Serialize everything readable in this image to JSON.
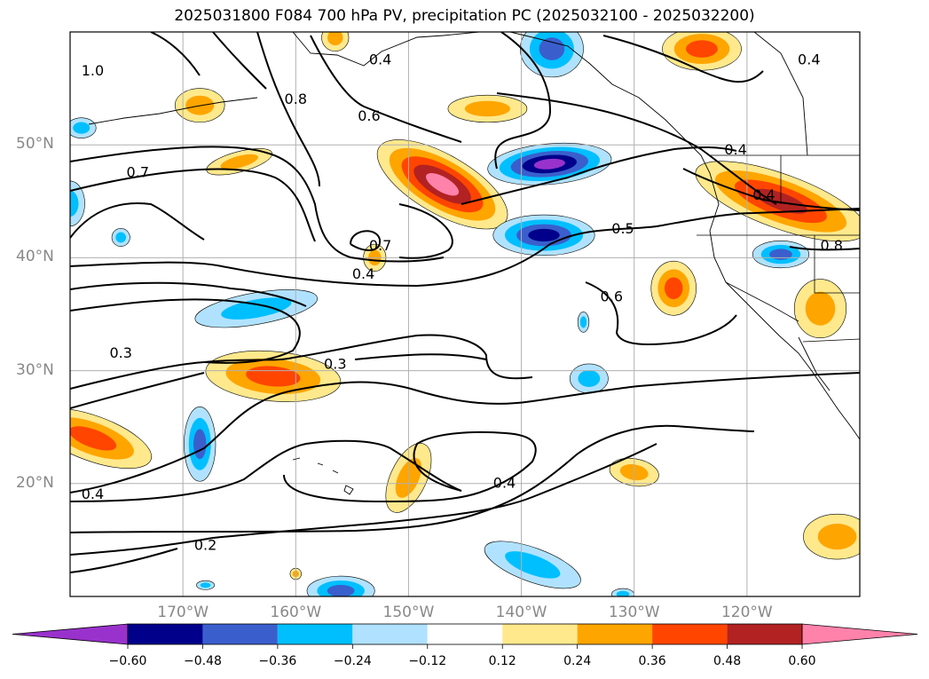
{
  "title": "2025031800 F084 700 hPa PV, precipitation PC (2025032100 - 2025032200)",
  "map": {
    "lon_range": [
      -180,
      -110
    ],
    "lat_range": [
      10,
      60
    ],
    "gridlines": true,
    "lat_ticks": [
      {
        "value": 50,
        "label": "50°N"
      },
      {
        "value": 40,
        "label": "40°N"
      },
      {
        "value": 30,
        "label": "30°N"
      },
      {
        "value": 20,
        "label": "20°N"
      }
    ],
    "lon_ticks": [
      {
        "value": -170,
        "label": "170°W"
      },
      {
        "value": -160,
        "label": "160°W"
      },
      {
        "value": -150,
        "label": "150°W"
      },
      {
        "value": -140,
        "label": "140°W"
      },
      {
        "value": -130,
        "label": "130°W"
      },
      {
        "value": -120,
        "label": "120°W"
      }
    ]
  },
  "contour_labels": [
    {
      "text": "1.0",
      "lon": -178,
      "lat": 56.5
    },
    {
      "text": "0.8",
      "lon": -160,
      "lat": 54
    },
    {
      "text": "0.4",
      "lon": -152.5,
      "lat": 57.5
    },
    {
      "text": "0.6",
      "lon": -153.5,
      "lat": 52.5
    },
    {
      "text": "0.7",
      "lon": -174,
      "lat": 47.5
    },
    {
      "text": "0.7",
      "lon": -152.5,
      "lat": 41
    },
    {
      "text": "0.4",
      "lon": -154,
      "lat": 38.5
    },
    {
      "text": "0.5",
      "lon": -131,
      "lat": 42.5
    },
    {
      "text": "0.6",
      "lon": -132,
      "lat": 36.5
    },
    {
      "text": "0.4",
      "lon": -121,
      "lat": 49.5
    },
    {
      "text": "0.4",
      "lon": -118.5,
      "lat": 45.5
    },
    {
      "text": "0.4",
      "lon": -114.5,
      "lat": 57.5
    },
    {
      "text": "0.8",
      "lon": -112.5,
      "lat": 41
    },
    {
      "text": "0.3",
      "lon": -175.5,
      "lat": 31.5
    },
    {
      "text": "0.3",
      "lon": -156.5,
      "lat": 30.5
    },
    {
      "text": "0.4",
      "lon": -178,
      "lat": 19
    },
    {
      "text": "0.4",
      "lon": -141.5,
      "lat": 20
    },
    {
      "text": "0.2",
      "lon": -168,
      "lat": 14.5
    }
  ],
  "colorbar": {
    "levels": [
      -0.6,
      -0.48,
      -0.36,
      -0.24,
      -0.12,
      0.12,
      0.24,
      0.36,
      0.48,
      0.6
    ],
    "tick_labels": [
      "−0.60",
      "−0.48",
      "−0.36",
      "−0.24",
      "−0.12",
      "0.12",
      "0.24",
      "0.36",
      "0.48",
      "0.60"
    ],
    "colors": [
      "#9932cc",
      "#00008b",
      "#3a5fcd",
      "#00bfff",
      "#b0e2ff",
      "#ffffff",
      "#ffe98c",
      "#ffa500",
      "#ff4500",
      "#b22222",
      "#ff82ab"
    ],
    "extend": "both"
  },
  "shading": [
    {
      "lon": -147,
      "lat": 46.5,
      "rx": 6.5,
      "ry": 2.6,
      "rot": 30,
      "value": 0.62
    },
    {
      "lon": -137.5,
      "lat": 48.3,
      "rx": 5.5,
      "ry": 1.8,
      "rot": -5,
      "value": -0.62
    },
    {
      "lon": -138,
      "lat": 42,
      "rx": 4.5,
      "ry": 1.8,
      "rot": 0,
      "value": -0.5
    },
    {
      "lon": -117,
      "lat": 40.3,
      "rx": 2.5,
      "ry": 1.2,
      "rot": 0,
      "value": -0.4
    },
    {
      "lon": -117,
      "lat": 45,
      "rx": 8,
      "ry": 2.4,
      "rot": 20,
      "value": 0.5
    },
    {
      "lon": -126.5,
      "lat": 37.3,
      "rx": 2,
      "ry": 2.4,
      "rot": 0,
      "value": 0.38
    },
    {
      "lon": -113.5,
      "lat": 35.5,
      "rx": 2.3,
      "ry": 2.6,
      "rot": 0,
      "value": 0.3
    },
    {
      "lon": -124,
      "lat": 58.5,
      "rx": 3.5,
      "ry": 1.9,
      "rot": 0,
      "value": 0.4
    },
    {
      "lon": -137.3,
      "lat": 58.5,
      "rx": 2.8,
      "ry": 2.5,
      "rot": 0,
      "value": -0.45
    },
    {
      "lon": -143,
      "lat": 53.2,
      "rx": 3.5,
      "ry": 1.2,
      "rot": 0,
      "value": 0.3
    },
    {
      "lon": -156.5,
      "lat": 59.5,
      "rx": 1.2,
      "ry": 1.2,
      "rot": 0,
      "value": 0.32
    },
    {
      "lon": -178,
      "lat": 24,
      "rx": 5.5,
      "ry": 2,
      "rot": 20,
      "value": 0.38
    },
    {
      "lon": -162,
      "lat": 29.5,
      "rx": 6,
      "ry": 2.2,
      "rot": 5,
      "value": 0.38
    },
    {
      "lon": -150,
      "lat": 20.5,
      "rx": 1.6,
      "ry": 3.3,
      "rot": 25,
      "value": 0.34
    },
    {
      "lon": -130,
      "lat": 21,
      "rx": 2.2,
      "ry": 1.2,
      "rot": 10,
      "value": 0.33
    },
    {
      "lon": -112,
      "lat": 15.3,
      "rx": 3,
      "ry": 2,
      "rot": 0,
      "value": 0.3
    },
    {
      "lon": -168.5,
      "lat": 53.5,
      "rx": 2.2,
      "ry": 1.5,
      "rot": 0,
      "value": 0.26
    },
    {
      "lon": -165,
      "lat": 48.5,
      "rx": 3,
      "ry": 0.9,
      "rot": -15,
      "value": 0.26
    },
    {
      "lon": -153,
      "lat": 40,
      "rx": 1,
      "ry": 1.2,
      "rot": 0,
      "value": 0.26
    },
    {
      "lon": -168.5,
      "lat": 23.5,
      "rx": 1.4,
      "ry": 3.3,
      "rot": 0,
      "value": -0.42
    },
    {
      "lon": -163.5,
      "lat": 35.5,
      "rx": 5.5,
      "ry": 1.4,
      "rot": -10,
      "value": -0.3
    },
    {
      "lon": -139,
      "lat": 12.8,
      "rx": 4.5,
      "ry": 1.5,
      "rot": 20,
      "value": -0.3
    },
    {
      "lon": -134,
      "lat": 29.3,
      "rx": 1.7,
      "ry": 1.3,
      "rot": 0,
      "value": -0.3
    },
    {
      "lon": -156,
      "lat": 10.5,
      "rx": 3,
      "ry": 1.3,
      "rot": 0,
      "value": -0.4
    },
    {
      "lon": -180,
      "lat": 44.8,
      "rx": 1.3,
      "ry": 2,
      "rot": 0,
      "value": -0.3
    },
    {
      "lon": -179,
      "lat": 51.5,
      "rx": 1.3,
      "ry": 0.9,
      "rot": 0,
      "value": -0.28
    },
    {
      "lon": -175.5,
      "lat": 41.8,
      "rx": 0.8,
      "ry": 0.8,
      "rot": 0,
      "value": -0.26
    },
    {
      "lon": -134.5,
      "lat": 34.3,
      "rx": 0.5,
      "ry": 0.9,
      "rot": 0,
      "value": -0.26
    },
    {
      "lon": -131,
      "lat": 10.2,
      "rx": 1,
      "ry": 0.5,
      "rot": 0,
      "value": -0.26
    },
    {
      "lon": -168,
      "lat": 11,
      "rx": 0.8,
      "ry": 0.4,
      "rot": 0,
      "value": -0.26
    },
    {
      "lon": -160,
      "lat": 12,
      "rx": 0.5,
      "ry": 0.5,
      "rot": 0,
      "value": 0.26
    }
  ]
}
